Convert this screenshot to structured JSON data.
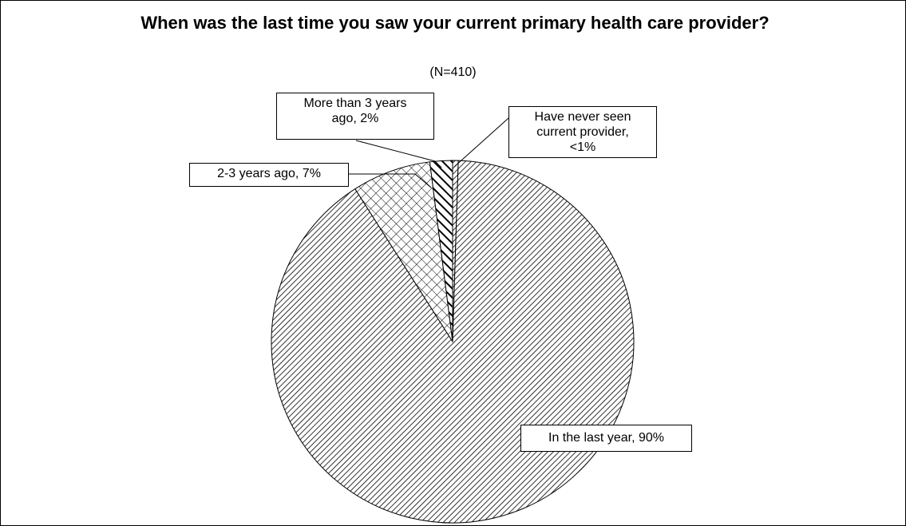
{
  "chart_data": {
    "type": "pie",
    "title": "When was the last time you saw your current primary health care provider?",
    "subtitle": "(N=410)",
    "slices": [
      {
        "label": "In the last year",
        "value": 90,
        "display": "In the last year, 90%",
        "pattern": "diag-fine"
      },
      {
        "label": "2-3 years ago",
        "value": 7,
        "display": "2-3 years ago, 7%",
        "pattern": "crosshatch"
      },
      {
        "label": "More than 3 years ago",
        "value": 2,
        "display": "More than 3 years ago, 2%",
        "pattern": "diag-bold"
      },
      {
        "label": "Have never seen current provider",
        "value": 0.5,
        "display": "Have never seen current provider, <1%",
        "pattern": "diag-fine"
      }
    ],
    "start_angle_deg": 0,
    "direction": "clockwise",
    "legend": "none"
  },
  "labels": {
    "in_last_year": "In the last year, 90%",
    "two_three": "2-3 years ago, 7%",
    "more_than_three": "More than 3 years\nago, 2%",
    "never_seen": "Have never seen\ncurrent provider,\n<1%"
  }
}
